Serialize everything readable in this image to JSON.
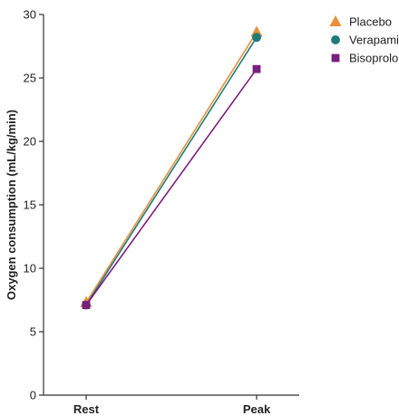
{
  "chart_data": {
    "type": "line",
    "categories": [
      "Rest",
      "Peak"
    ],
    "ylabel": "Oxygen consumption (mL/kg/min)",
    "xlabel": "",
    "ylim": [
      0,
      30
    ],
    "yticks": [
      0,
      5,
      10,
      15,
      20,
      25,
      30
    ],
    "grid": false,
    "legend_position": "top-right",
    "series": [
      {
        "name": "Placebo",
        "values": [
          7.3,
          28.6
        ],
        "color": "#e8913a",
        "marker": "triangle"
      },
      {
        "name": "Verapamil",
        "values": [
          7.1,
          28.2
        ],
        "color": "#1f7b7b",
        "marker": "circle"
      },
      {
        "name": "Bisoprolol",
        "values": [
          7.1,
          25.7
        ],
        "color": "#7b1f7e",
        "marker": "square"
      }
    ]
  }
}
